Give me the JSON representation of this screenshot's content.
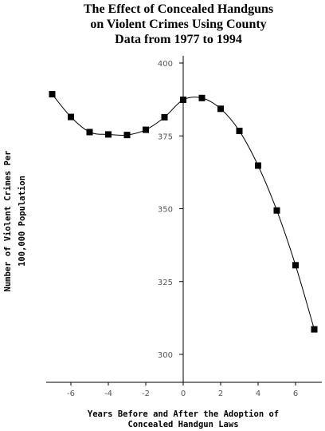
{
  "chart_data": {
    "type": "line",
    "title_lines": [
      "The Effect of Concealed Handguns",
      "on Violent Crimes Using County",
      "Data from 1977 to 1994"
    ],
    "xlabel_lines": [
      "Years Before and After the Adoption of",
      "Concealed Handgun Laws"
    ],
    "ylabel_lines": [
      "Number of Violent Crimes Per",
      "100,000 Population"
    ],
    "xlim": [
      -7.5,
      7.5
    ],
    "ylim": [
      290,
      403
    ],
    "x_ticks": [
      -6,
      -4,
      -2,
      0,
      2,
      4,
      6
    ],
    "x_tick_labels": [
      "-6",
      "-4",
      "-2",
      "0",
      "2",
      "4",
      "6"
    ],
    "y_ticks": [
      300,
      325,
      350,
      375,
      400
    ],
    "y_tick_labels": [
      "300",
      "325",
      "350",
      "375",
      "400"
    ],
    "grid": false,
    "series": [
      {
        "x": [
          -7,
          -6,
          -5,
          -4,
          -3,
          -2,
          -1,
          0,
          1,
          2,
          3,
          4,
          5,
          6,
          7
        ],
        "y": [
          389.3,
          381.5,
          376.3,
          375.5,
          375.3,
          377.1,
          381.4,
          387.4,
          388.0,
          384.3,
          376.7,
          364.8,
          349.4,
          330.6,
          308.6
        ]
      }
    ]
  }
}
